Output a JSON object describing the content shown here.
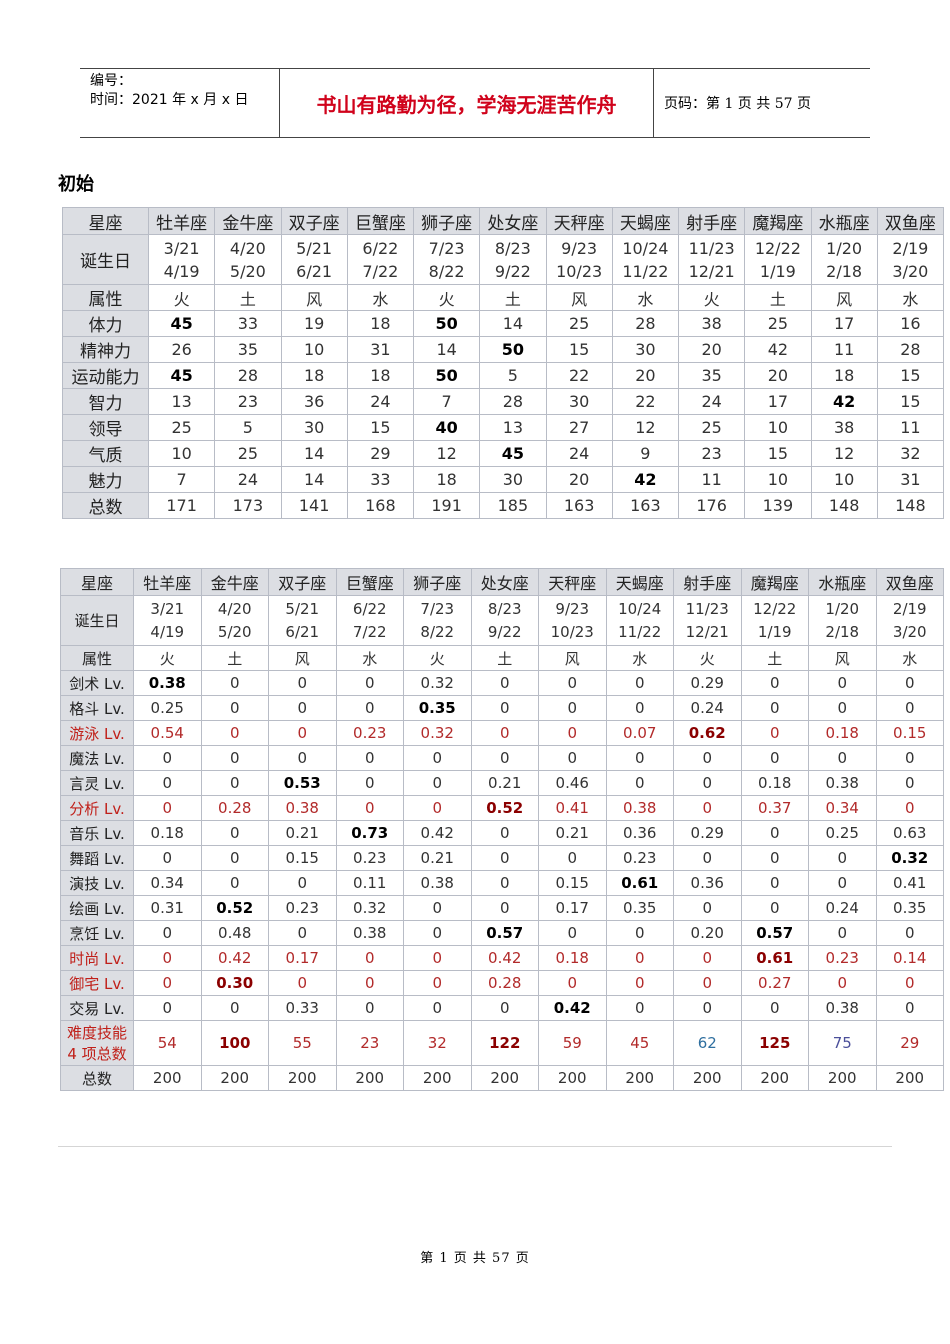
{
  "header": {
    "number_label": "编号：",
    "time_label": "时间：2021 年 x 月 x 日",
    "motto": "书山有路勤为径，学海无涯苦作舟",
    "page_info": "页码：第 1 页  共 57 页"
  },
  "section_title": "初始",
  "table1": {
    "corner": "星座",
    "signs": [
      "牡羊座",
      "金牛座",
      "双子座",
      "巨蟹座",
      "狮子座",
      "处女座",
      "天秤座",
      "天蝎座",
      "射手座",
      "魔羯座",
      "水瓶座",
      "双鱼座"
    ],
    "birth_label": "诞生日",
    "birth_start": [
      "3/21",
      "4/20",
      "5/21",
      "6/22",
      "7/23",
      "8/23",
      "9/23",
      "10/24",
      "11/23",
      "12/22",
      "1/20",
      "2/19"
    ],
    "birth_end": [
      "4/19",
      "5/20",
      "6/21",
      "7/22",
      "8/22",
      "9/22",
      "10/23",
      "11/22",
      "12/21",
      "1/19",
      "2/18",
      "3/20"
    ],
    "element_label": "属性",
    "elements": [
      "火",
      "土",
      "风",
      "水",
      "火",
      "土",
      "风",
      "水",
      "火",
      "土",
      "风",
      "水"
    ],
    "rows": [
      {
        "label": "体力",
        "values": [
          "45",
          "33",
          "19",
          "18",
          "50",
          "14",
          "25",
          "28",
          "38",
          "25",
          "17",
          "16"
        ]
      },
      {
        "label": "精神力",
        "values": [
          "26",
          "35",
          "10",
          "31",
          "14",
          "50",
          "15",
          "30",
          "20",
          "42",
          "11",
          "28"
        ]
      },
      {
        "label": "运动能力",
        "values": [
          "45",
          "28",
          "18",
          "18",
          "50",
          "5",
          "22",
          "20",
          "35",
          "20",
          "18",
          "15"
        ]
      },
      {
        "label": "智力",
        "values": [
          "13",
          "23",
          "36",
          "24",
          "7",
          "28",
          "30",
          "22",
          "24",
          "17",
          "42",
          "15"
        ]
      },
      {
        "label": "领导",
        "values": [
          "25",
          "5",
          "30",
          "15",
          "40",
          "13",
          "27",
          "12",
          "25",
          "10",
          "38",
          "11"
        ]
      },
      {
        "label": "气质",
        "values": [
          "10",
          "25",
          "14",
          "29",
          "12",
          "45",
          "24",
          "9",
          "23",
          "15",
          "12",
          "32"
        ]
      },
      {
        "label": "魅力",
        "values": [
          "7",
          "24",
          "14",
          "33",
          "18",
          "30",
          "20",
          "42",
          "11",
          "10",
          "10",
          "31"
        ]
      },
      {
        "label": "总数",
        "values": [
          "171",
          "173",
          "141",
          "168",
          "191",
          "185",
          "163",
          "163",
          "176",
          "139",
          "148",
          "148"
        ]
      }
    ]
  },
  "table2": {
    "corner": "星座",
    "signs": [
      "牡羊座",
      "金牛座",
      "双子座",
      "巨蟹座",
      "狮子座",
      "处女座",
      "天秤座",
      "天蝎座",
      "射手座",
      "魔羯座",
      "水瓶座",
      "双鱼座"
    ],
    "birth_label": "诞生日",
    "birth_start": [
      "3/21",
      "4/20",
      "5/21",
      "6/22",
      "7/23",
      "8/23",
      "9/23",
      "10/24",
      "11/23",
      "12/22",
      "1/20",
      "2/19"
    ],
    "birth_end": [
      "4/19",
      "5/20",
      "6/21",
      "7/22",
      "8/22",
      "9/22",
      "10/23",
      "11/22",
      "12/21",
      "1/19",
      "2/18",
      "3/20"
    ],
    "element_label": "属性",
    "elements": [
      "火",
      "土",
      "风",
      "水",
      "火",
      "土",
      "风",
      "水",
      "火",
      "土",
      "风",
      "水"
    ],
    "rows": [
      {
        "label": "剑术 Lv.",
        "values": [
          "0.38",
          "0",
          "0",
          "0",
          "0.32",
          "0",
          "0",
          "0",
          "0.29",
          "0",
          "0",
          "0"
        ]
      },
      {
        "label": "格斗 Lv.",
        "values": [
          "0.25",
          "0",
          "0",
          "0",
          "0.35",
          "0",
          "0",
          "0",
          "0.24",
          "0",
          "0",
          "0"
        ]
      },
      {
        "label": "游泳 Lv.",
        "values": [
          "0.54",
          "0",
          "0",
          "0.23",
          "0.32",
          "0",
          "0",
          "0.07",
          "0.62",
          "0",
          "0.18",
          "0.15"
        ]
      },
      {
        "label": "魔法 Lv.",
        "values": [
          "0",
          "0",
          "0",
          "0",
          "0",
          "0",
          "0",
          "0",
          "0",
          "0",
          "0",
          "0"
        ]
      },
      {
        "label": "言灵 Lv.",
        "values": [
          "0",
          "0",
          "0.53",
          "0",
          "0",
          "0.21",
          "0.46",
          "0",
          "0",
          "0.18",
          "0.38",
          "0"
        ]
      },
      {
        "label": "分析 Lv.",
        "values": [
          "0",
          "0.28",
          "0.38",
          "0",
          "0",
          "0.52",
          "0.41",
          "0.38",
          "0",
          "0.37",
          "0.34",
          "0"
        ]
      },
      {
        "label": "音乐 Lv.",
        "values": [
          "0.18",
          "0",
          "0.21",
          "0.73",
          "0.42",
          "0",
          "0.21",
          "0.36",
          "0.29",
          "0",
          "0.25",
          "0.63"
        ]
      },
      {
        "label": "舞蹈 Lv.",
        "values": [
          "0",
          "0",
          "0.15",
          "0.23",
          "0.21",
          "0",
          "0",
          "0.23",
          "0",
          "0",
          "0",
          "0.32"
        ]
      },
      {
        "label": "演技 Lv.",
        "values": [
          "0.34",
          "0",
          "0",
          "0.11",
          "0.38",
          "0",
          "0.15",
          "0.61",
          "0.36",
          "0",
          "0",
          "0.41"
        ]
      },
      {
        "label": "绘画 Lv.",
        "values": [
          "0.31",
          "0.52",
          "0.23",
          "0.32",
          "0",
          "0",
          "0.17",
          "0.35",
          "0",
          "0",
          "0.24",
          "0.35"
        ]
      },
      {
        "label": "烹饪 Lv.",
        "values": [
          "0",
          "0.48",
          "0",
          "0.38",
          "0",
          "0.57",
          "0",
          "0",
          "0.20",
          "0.57",
          "0",
          "0"
        ]
      },
      {
        "label": "时尚 Lv.",
        "values": [
          "0",
          "0.42",
          "0.17",
          "0",
          "0",
          "0.42",
          "0.18",
          "0",
          "0",
          "0.61",
          "0.23",
          "0.14"
        ]
      },
      {
        "label": "御宅 Lv.",
        "values": [
          "0",
          "0.30",
          "0",
          "0",
          "0",
          "0.28",
          "0",
          "0",
          "0",
          "0.27",
          "0",
          "0"
        ]
      },
      {
        "label": "交易 Lv.",
        "values": [
          "0",
          "0",
          "0.33",
          "0",
          "0",
          "0",
          "0.42",
          "0",
          "0",
          "0",
          "0.38",
          "0"
        ]
      }
    ],
    "difficulty_label_1": "难度技能",
    "difficulty_label_2": "4 项总数",
    "difficulty_values": [
      "54",
      "100",
      "55",
      "23",
      "32",
      "122",
      "59",
      "45",
      "62",
      "125",
      "75",
      "29"
    ],
    "total_label": "总数",
    "total_values": [
      "200",
      "200",
      "200",
      "200",
      "200",
      "200",
      "200",
      "200",
      "200",
      "200",
      "200",
      "200"
    ]
  },
  "footer": "第 1 页 共 57 页"
}
